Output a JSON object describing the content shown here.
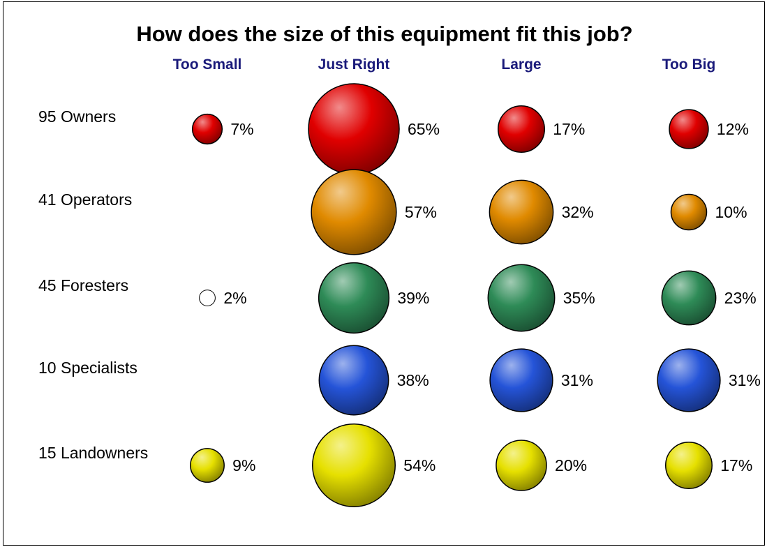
{
  "chart_data": {
    "type": "bubble",
    "title": "How does the size of this equipment fit this job?",
    "header_color": "#1a1a7a",
    "columns": [
      "Too Small",
      "Just Right",
      "Large",
      "Too Big"
    ],
    "rows": [
      {
        "label": "95 Owners",
        "color": "#e00000",
        "values": [
          7,
          65,
          17,
          12
        ]
      },
      {
        "label": "41 Operators",
        "color": "#e08a00",
        "values": [
          null,
          57,
          32,
          10
        ]
      },
      {
        "label": "45 Foresters",
        "color": "#2e8b57",
        "values": [
          2,
          39,
          35,
          23
        ]
      },
      {
        "label": "10 Specialists",
        "color": "#2554d8",
        "values": [
          null,
          38,
          31,
          31
        ]
      },
      {
        "label": "15 Landowners",
        "color": "#e6e000",
        "values": [
          9,
          54,
          20,
          17
        ]
      }
    ],
    "value_suffix": "%"
  }
}
